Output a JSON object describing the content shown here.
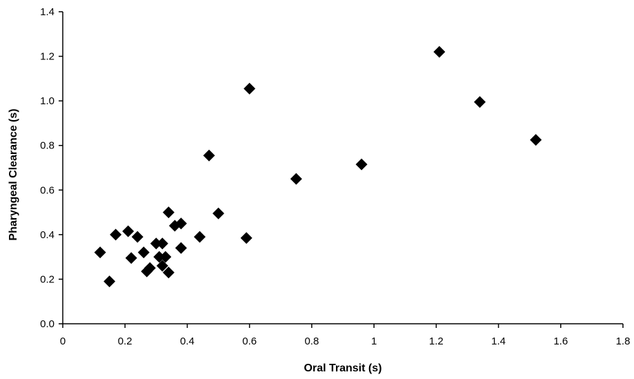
{
  "chart_data": {
    "type": "scatter",
    "title": "",
    "xlabel": "Oral Transit (s)",
    "ylabel": "Pharyngeal Clearance (s)",
    "xlim": [
      0,
      1.8
    ],
    "ylim": [
      0,
      1.4
    ],
    "xticks": [
      0,
      0.2,
      0.4,
      0.6,
      0.8,
      1,
      1.2,
      1.4,
      1.6,
      1.8
    ],
    "xtick_labels": [
      "0",
      "0.2",
      "0.4",
      "0.6",
      "0.8",
      "1",
      "1.2",
      "1.4",
      "1.6",
      "1.8"
    ],
    "yticks": [
      0,
      0.2,
      0.4,
      0.6,
      0.8,
      1.0,
      1.2,
      1.4
    ],
    "ytick_labels": [
      "0.0",
      "0.2",
      "0.4",
      "0.6",
      "0.8",
      "1.0",
      "1.2",
      "1.4"
    ],
    "grid": false,
    "legend": "none",
    "marker": "diamond",
    "marker_color": "#000000",
    "points": [
      {
        "x": 0.12,
        "y": 0.32
      },
      {
        "x": 0.15,
        "y": 0.19
      },
      {
        "x": 0.17,
        "y": 0.4
      },
      {
        "x": 0.21,
        "y": 0.415
      },
      {
        "x": 0.22,
        "y": 0.295
      },
      {
        "x": 0.24,
        "y": 0.39
      },
      {
        "x": 0.26,
        "y": 0.32
      },
      {
        "x": 0.27,
        "y": 0.235
      },
      {
        "x": 0.28,
        "y": 0.25
      },
      {
        "x": 0.3,
        "y": 0.36
      },
      {
        "x": 0.31,
        "y": 0.3
      },
      {
        "x": 0.32,
        "y": 0.36
      },
      {
        "x": 0.32,
        "y": 0.26
      },
      {
        "x": 0.33,
        "y": 0.3
      },
      {
        "x": 0.34,
        "y": 0.23
      },
      {
        "x": 0.34,
        "y": 0.5
      },
      {
        "x": 0.36,
        "y": 0.44
      },
      {
        "x": 0.38,
        "y": 0.45
      },
      {
        "x": 0.38,
        "y": 0.34
      },
      {
        "x": 0.44,
        "y": 0.39
      },
      {
        "x": 0.47,
        "y": 0.755
      },
      {
        "x": 0.5,
        "y": 0.495
      },
      {
        "x": 0.59,
        "y": 0.385
      },
      {
        "x": 0.6,
        "y": 1.055
      },
      {
        "x": 0.75,
        "y": 0.65
      },
      {
        "x": 0.96,
        "y": 0.715
      },
      {
        "x": 1.21,
        "y": 1.22
      },
      {
        "x": 1.34,
        "y": 0.995
      },
      {
        "x": 1.52,
        "y": 0.825
      }
    ]
  }
}
